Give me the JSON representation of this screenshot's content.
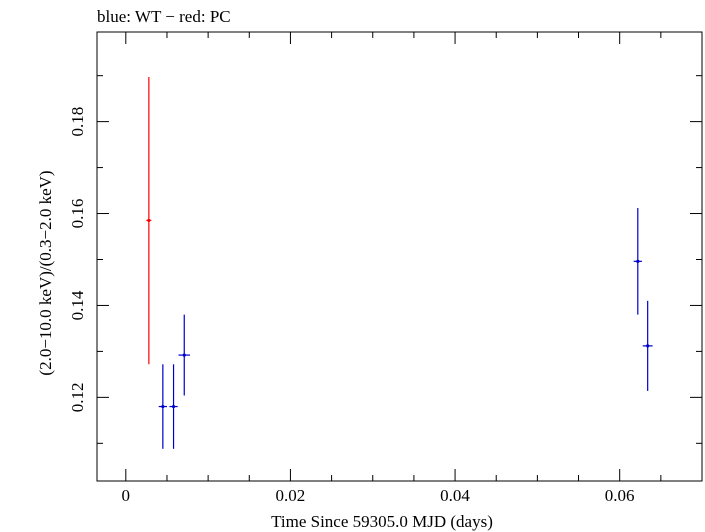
{
  "chart_data": {
    "type": "scatter",
    "title": "blue: WT − red: PC",
    "xlabel": "Time Since 59305.0 MJD (days)",
    "ylabel": "(2.0−10.0 keV)/(0.3−2.0 keV)",
    "xlim": [
      -0.0035,
      0.07
    ],
    "ylim": [
      0.1018,
      0.1995
    ],
    "x_ticks": [
      0,
      0.02,
      0.04,
      0.06
    ],
    "x_tick_labels": [
      "0",
      "0.02",
      "0.04",
      "0.06"
    ],
    "y_ticks": [
      0.12,
      0.14,
      0.16,
      0.18
    ],
    "y_tick_labels": [
      "0.12",
      "0.14",
      "0.16",
      "0.18"
    ],
    "grid": false,
    "series": [
      {
        "color": "#ff0000",
        "points": [
          {
            "x": 0.0028,
            "xerr": 0.0003,
            "y": 0.1585,
            "ylo": 0.1272,
            "yhi": 0.1897
          }
        ]
      },
      {
        "color": "#0000cc",
        "points": [
          {
            "x": 0.0045,
            "xerr": 0.0005,
            "y": 0.118,
            "ylo": 0.1088,
            "yhi": 0.1272
          },
          {
            "x": 0.0058,
            "xerr": 0.0005,
            "y": 0.118,
            "ylo": 0.1088,
            "yhi": 0.1272
          },
          {
            "x": 0.0071,
            "xerr": 0.0007,
            "y": 0.1292,
            "ylo": 0.1204,
            "yhi": 0.138
          },
          {
            "x": 0.0622,
            "xerr": 0.0005,
            "y": 0.1496,
            "ylo": 0.138,
            "yhi": 0.1612
          },
          {
            "x": 0.0634,
            "xerr": 0.0006,
            "y": 0.1312,
            "ylo": 0.1214,
            "yhi": 0.141
          }
        ]
      }
    ]
  }
}
